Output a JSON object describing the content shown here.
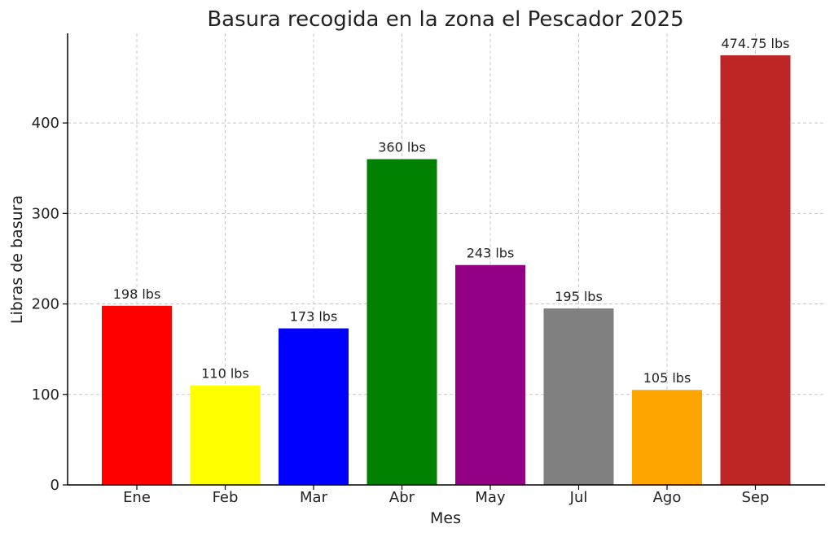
{
  "chart_data": {
    "type": "bar",
    "title": "Basura recogida en la zona el Pescador 2025",
    "xlabel": "Mes",
    "ylabel": "Libras de basura",
    "categories": [
      "Ene",
      "Feb",
      "Mar",
      "Abr",
      "May",
      "Jul",
      "Ago",
      "Sep"
    ],
    "values": [
      198,
      110,
      173,
      360,
      243,
      195,
      105,
      474.75
    ],
    "data_labels": [
      "198 lbs",
      "110 lbs",
      "173 lbs",
      "360 lbs",
      "243 lbs",
      "195 lbs",
      "105 lbs",
      "474.75 lbs"
    ],
    "colors": [
      "#ff0000",
      "#ffff00",
      "#0000ff",
      "#008000",
      "#930085",
      "#808080",
      "#ffa500",
      "#be2626"
    ],
    "ylim": [
      0,
      499
    ],
    "yticks": [
      0,
      100,
      200,
      300,
      400
    ],
    "grid": true,
    "legend": "none"
  }
}
